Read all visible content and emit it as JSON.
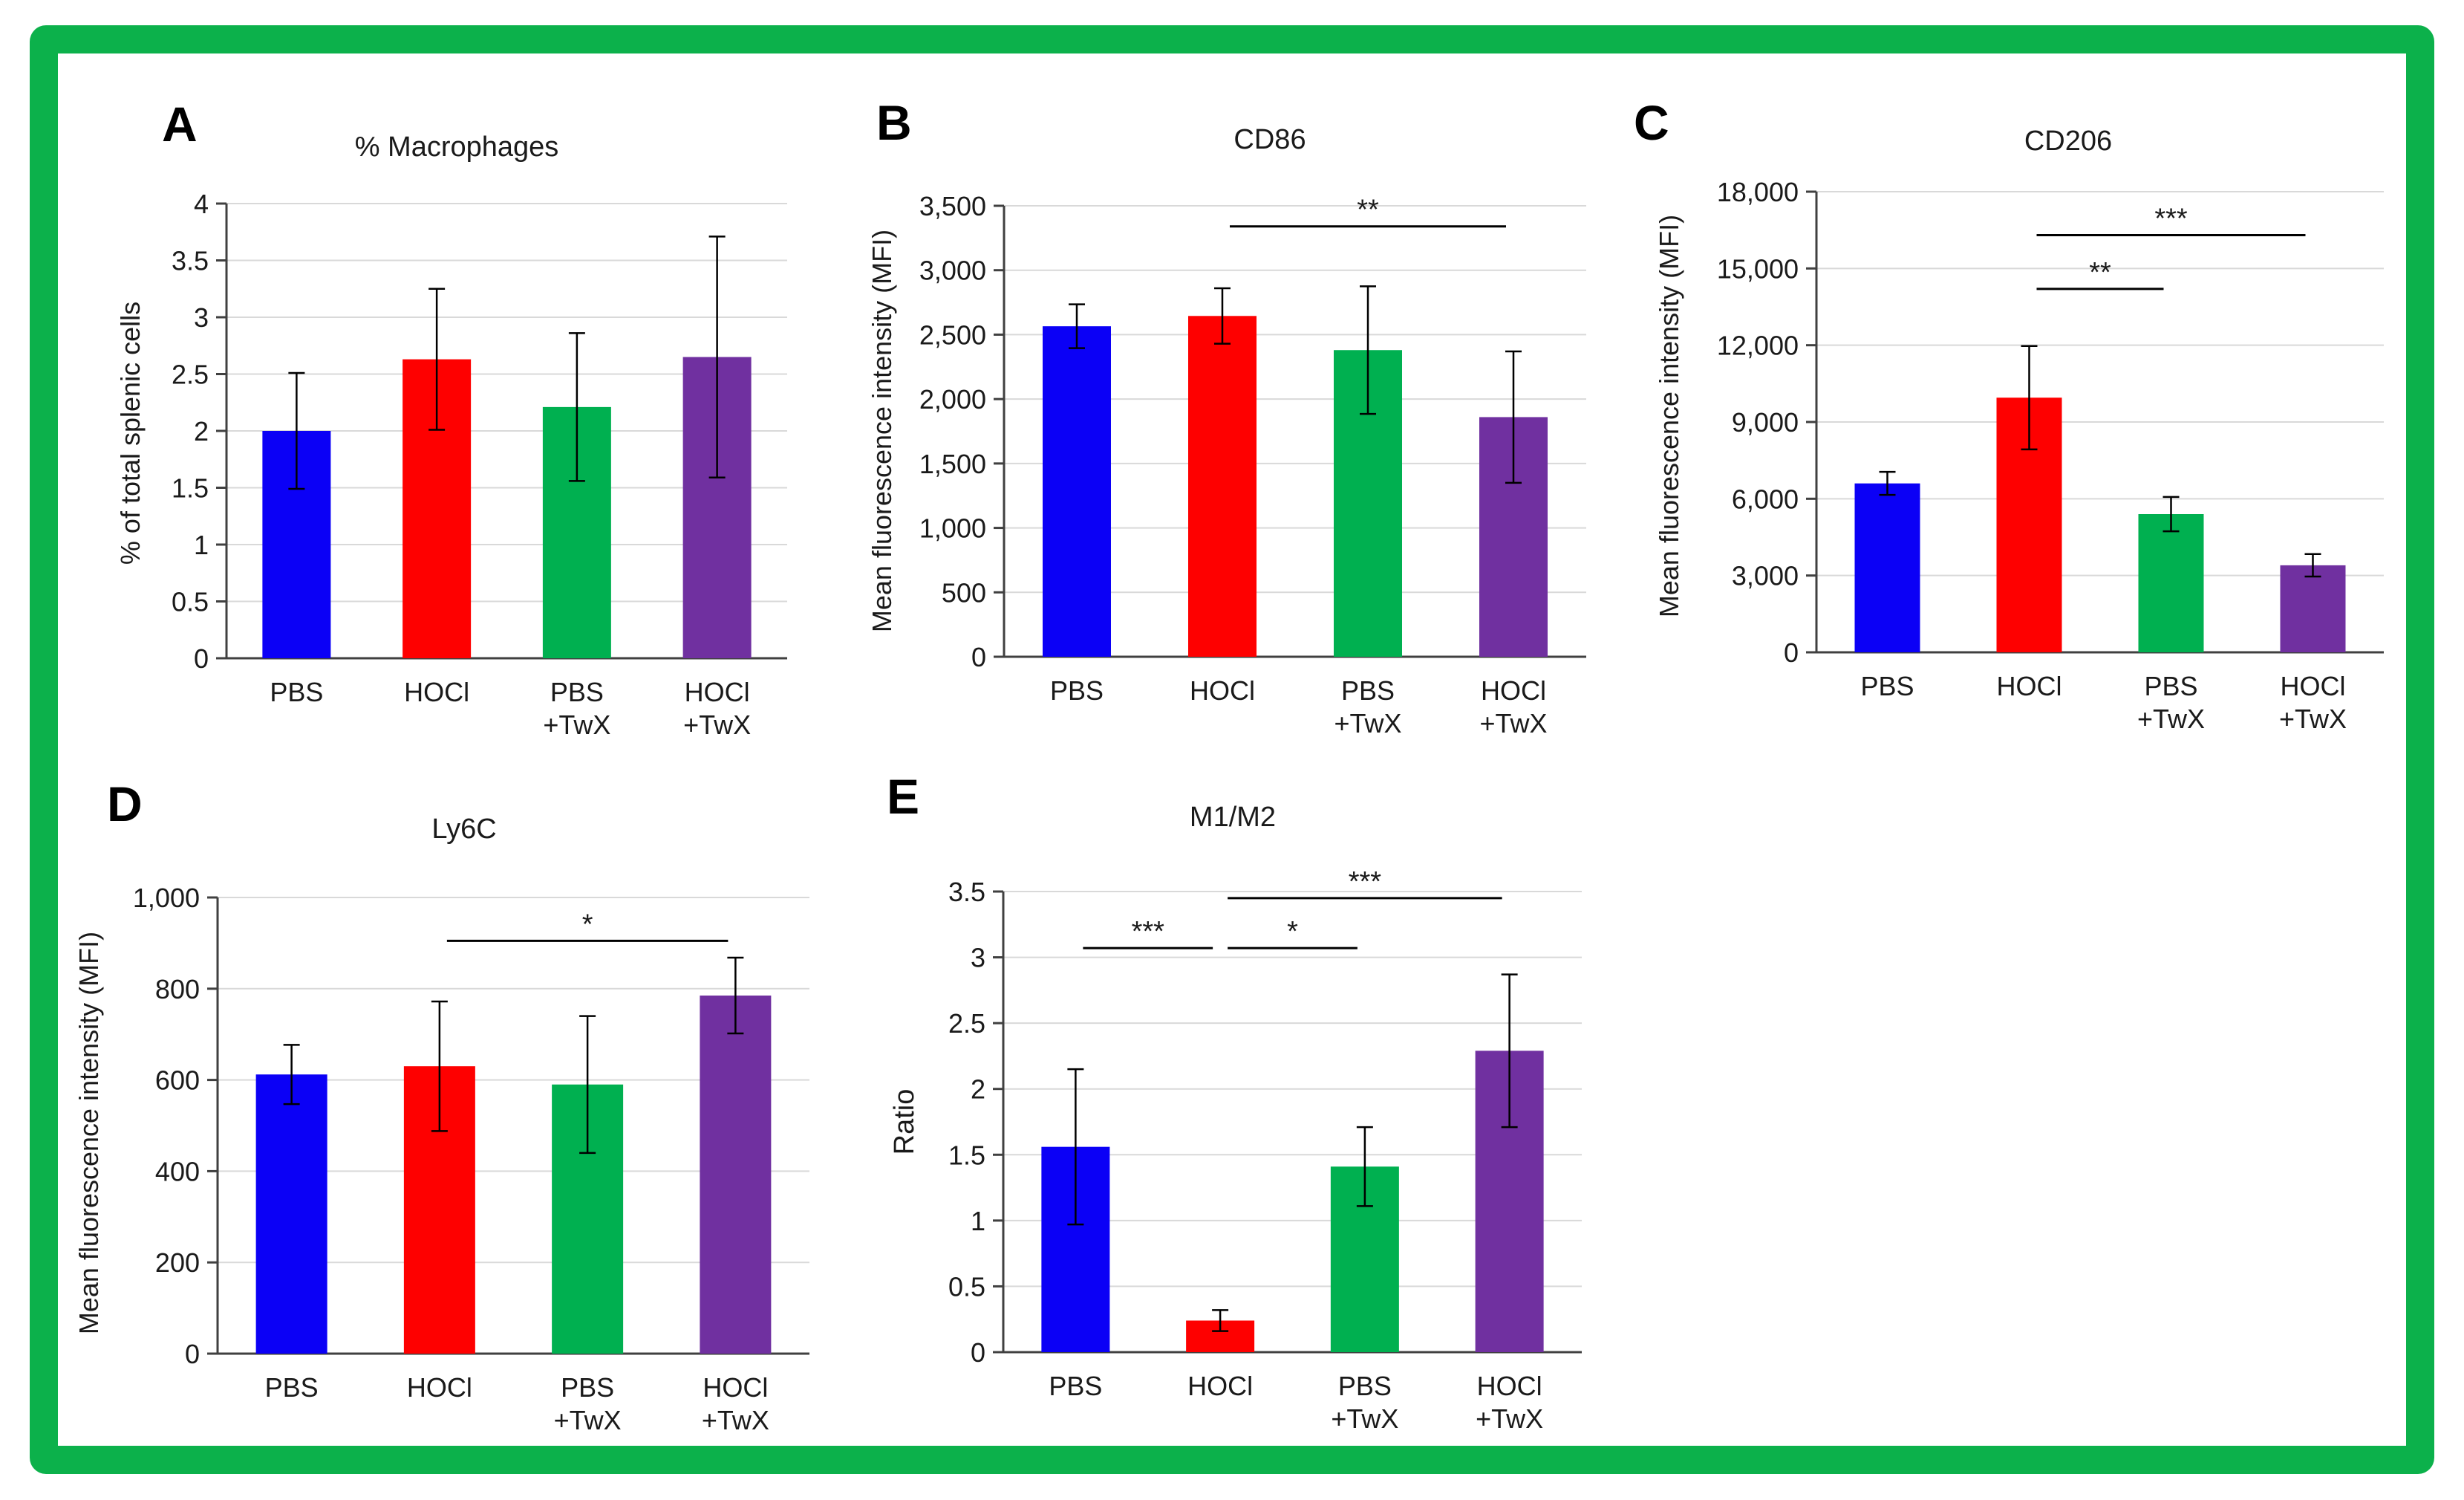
{
  "frame_color": "#0cb14b",
  "bar_colors": [
    "#0b00f6",
    "#fe0000",
    "#00b050",
    "#7030a0"
  ],
  "chart_data": [
    {
      "id": "a",
      "type": "bar",
      "panel_label": "A",
      "title": "% Macrophages",
      "ylabel": "% of total splenic cells",
      "ylim": [
        0,
        4
      ],
      "yticks": [
        "0",
        "0.5",
        "1",
        "1.5",
        "2",
        "2.5",
        "3",
        "3.5",
        "4"
      ],
      "tick_values": [
        0,
        0.5,
        1,
        1.5,
        2,
        2.5,
        3,
        3.5,
        4
      ],
      "categories": [
        [
          "PBS"
        ],
        [
          "HOCl"
        ],
        [
          "PBS",
          "+TwX"
        ],
        [
          "HOCl",
          "+TwX"
        ]
      ],
      "values": [
        2.0,
        2.63,
        2.21,
        2.65
      ],
      "errors": [
        0.51,
        0.62,
        0.65,
        1.06
      ],
      "significance": []
    },
    {
      "id": "b",
      "type": "bar",
      "panel_label": "B",
      "title": "CD86",
      "ylabel": "Mean fluorescence intensity (MFI)",
      "ylim": [
        0,
        3500
      ],
      "yticks": [
        "0",
        "500",
        "1,000",
        "1,500",
        "2,000",
        "2,500",
        "3,000",
        "3,500"
      ],
      "tick_values": [
        0,
        500,
        1000,
        1500,
        2000,
        2500,
        3000,
        3500
      ],
      "categories": [
        [
          "PBS"
        ],
        [
          "HOCl"
        ],
        [
          "PBS",
          "+TwX"
        ],
        [
          "HOCl",
          "+TwX"
        ]
      ],
      "values": [
        2565,
        2645,
        2380,
        1860
      ],
      "errors": [
        170,
        215,
        495,
        510
      ],
      "significance": [
        {
          "from": 1,
          "to": 3,
          "label": "**",
          "y": 3340
        }
      ]
    },
    {
      "id": "c",
      "type": "bar",
      "panel_label": "C",
      "title": "CD206",
      "ylabel": "Mean fluorescence intensity (MFI)",
      "ylim": [
        0,
        18000
      ],
      "yticks": [
        "0",
        "3,000",
        "6,000",
        "9,000",
        "12,000",
        "15,000",
        "18,000"
      ],
      "tick_values": [
        0,
        3000,
        6000,
        9000,
        12000,
        15000,
        18000
      ],
      "categories": [
        [
          "PBS"
        ],
        [
          "HOCl"
        ],
        [
          "PBS",
          "+TwX"
        ],
        [
          "HOCl",
          "+TwX"
        ]
      ],
      "values": [
        6600,
        9950,
        5400,
        3400
      ],
      "errors": [
        450,
        2020,
        670,
        440
      ],
      "significance": [
        {
          "from": 1,
          "to": 3,
          "label": "***",
          "y": 16300
        },
        {
          "from": 1,
          "to": 2,
          "label": "**",
          "y": 14200
        }
      ]
    },
    {
      "id": "d",
      "type": "bar",
      "panel_label": "D",
      "title": "Ly6C",
      "ylabel": "Mean fluorescence intensity (MFI)",
      "ylim": [
        0,
        1000
      ],
      "yticks": [
        "0",
        "200",
        "400",
        "600",
        "800",
        "1,000"
      ],
      "tick_values": [
        0,
        200,
        400,
        600,
        800,
        1000
      ],
      "categories": [
        [
          "PBS"
        ],
        [
          "HOCl"
        ],
        [
          "PBS",
          "+TwX"
        ],
        [
          "HOCl",
          "+TwX"
        ]
      ],
      "values": [
        612,
        630,
        590,
        785
      ],
      "errors": [
        65,
        142,
        150,
        83
      ],
      "significance": [
        {
          "from": 1,
          "to": 3,
          "label": "*",
          "y": 905
        }
      ]
    },
    {
      "id": "e",
      "type": "bar",
      "panel_label": "E",
      "title": "M1/M2",
      "ylabel": "Ratio",
      "ylim": [
        0,
        3.5
      ],
      "yticks": [
        "0",
        "0.5",
        "1",
        "1.5",
        "2",
        "2.5",
        "3",
        "3.5"
      ],
      "tick_values": [
        0,
        0.5,
        1,
        1.5,
        2,
        2.5,
        3,
        3.5
      ],
      "categories": [
        [
          "PBS"
        ],
        [
          "HOCl"
        ],
        [
          "PBS",
          "+TwX"
        ],
        [
          "HOCl",
          "+TwX"
        ]
      ],
      "values": [
        1.56,
        0.24,
        1.41,
        2.29
      ],
      "errors": [
        0.59,
        0.08,
        0.3,
        0.58
      ],
      "significance": [
        {
          "from": 1,
          "to": 3,
          "label": "***",
          "y": 3.45
        },
        {
          "from": 0,
          "to": 1,
          "label": "***",
          "y": 3.07
        },
        {
          "from": 1,
          "to": 2,
          "label": "*",
          "y": 3.07
        }
      ]
    }
  ]
}
